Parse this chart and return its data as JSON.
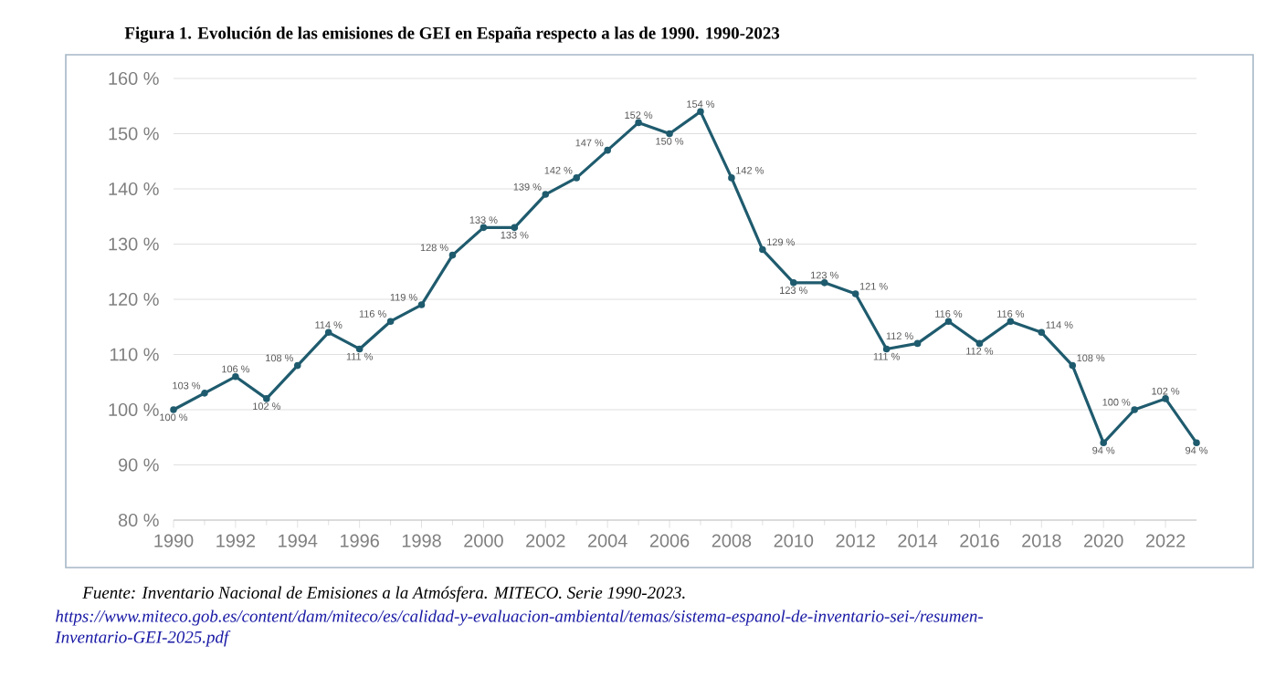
{
  "chart_data": {
    "type": "line",
    "title": "Figura 1. Evolución de las emisiones de GEI en España respecto a las de 1990. 1990-2023",
    "x": [
      1990,
      1991,
      1992,
      1993,
      1994,
      1995,
      1996,
      1997,
      1998,
      1999,
      2000,
      2001,
      2002,
      2003,
      2004,
      2005,
      2006,
      2007,
      2008,
      2009,
      2010,
      2011,
      2012,
      2013,
      2014,
      2015,
      2016,
      2017,
      2018,
      2019,
      2020,
      2021,
      2022,
      2023
    ],
    "series": [
      {
        "color": "#1f5b6e",
        "values": [
          100,
          103,
          106,
          102,
          108,
          114,
          111,
          116,
          119,
          128,
          133,
          133,
          139,
          142,
          147,
          152,
          150,
          154,
          142,
          129,
          123,
          123,
          121,
          111,
          112,
          116,
          112,
          116,
          114,
          108,
          94,
          100,
          102,
          94
        ],
        "value_labels": [
          "100 %",
          "103 %",
          "106 %",
          "102 %",
          "108 %",
          "114 %",
          "111 %",
          "116 %",
          "119 %",
          "128 %",
          "133 %",
          "133 %",
          "139 %",
          "142 %",
          "147 %",
          "152 %",
          "150 %",
          "154 %",
          "142 %",
          "129 %",
          "123 %",
          "123 %",
          "121 %",
          "111 %",
          "112 %",
          "116 %",
          "112 %",
          "116 %",
          "114 %",
          "108 %",
          "94 %",
          "100 %",
          "102 %",
          "94 %"
        ]
      }
    ],
    "xlim": [
      1990,
      2023
    ],
    "xticks": [
      1990,
      1992,
      1994,
      1996,
      1998,
      2000,
      2002,
      2004,
      2006,
      2008,
      2010,
      2012,
      2014,
      2016,
      2018,
      2020,
      2022
    ],
    "ylim": [
      80,
      160
    ],
    "yticks": [
      {
        "value": 80,
        "label": "80 %"
      },
      {
        "value": 90,
        "label": "90 %"
      },
      {
        "value": 100,
        "label": "100 %"
      },
      {
        "value": 110,
        "label": "110 %"
      },
      {
        "value": 120,
        "label": "120 %"
      },
      {
        "value": 130,
        "label": "130 %"
      },
      {
        "value": 140,
        "label": "140 %"
      },
      {
        "value": 150,
        "label": "150 %"
      },
      {
        "value": 160,
        "label": "160 %"
      }
    ],
    "grid": "y",
    "marker": "circle",
    "line_style": "solid",
    "annotations": [
      "*Fuente:* Inventario Nacional de Emisiones a la Atmósfera. MITECO. Serie 1990-2023.",
      "https://www.miteco.gob.es/content/dam/miteco/es/calidad-y-evaluacion-ambiental/temas/sistema-espanol-de-inventario-sei-/resumen-Inventario-GEI-2025.pdf"
    ]
  }
}
